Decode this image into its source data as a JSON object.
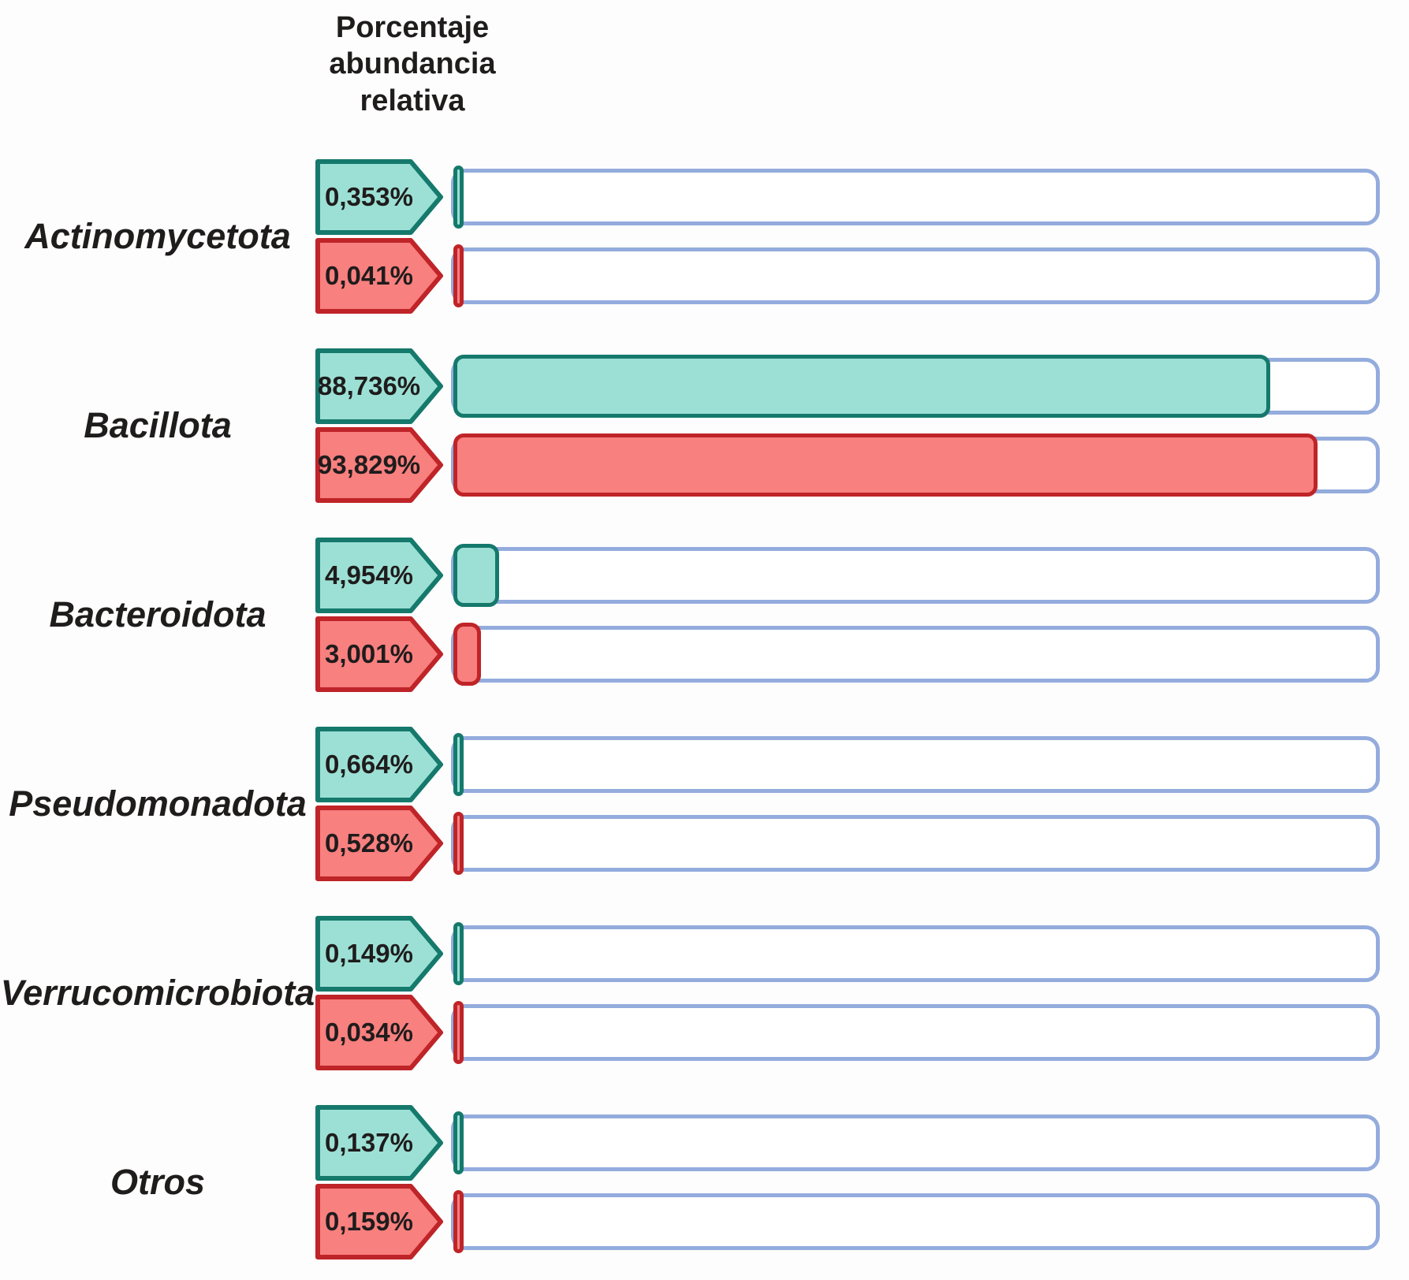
{
  "header": {
    "title": "Porcentaje abundancia relativa"
  },
  "colors": {
    "teal_fill": "#9ce0d5",
    "teal_border": "#15796c",
    "red_fill": "#f8807f",
    "red_border": "#bf2428",
    "track_border": "#94acdd",
    "track_fill": "#ffffff",
    "label_text": "#1f1c1c",
    "background": "#fdfdfd"
  },
  "groups": [
    {
      "label": "Actinomycetota",
      "rows": [
        {
          "series": "teal",
          "value_label": "0,353%",
          "value_num": 0.353
        },
        {
          "series": "red",
          "value_label": "0,041%",
          "value_num": 0.041
        }
      ]
    },
    {
      "label": "Bacillota",
      "rows": [
        {
          "series": "teal",
          "value_label": "88,736%",
          "value_num": 88.736
        },
        {
          "series": "red",
          "value_label": "93,829%",
          "value_num": 93.829
        }
      ]
    },
    {
      "label": "Bacteroidota",
      "rows": [
        {
          "series": "teal",
          "value_label": "4,954%",
          "value_num": 4.954
        },
        {
          "series": "red",
          "value_label": "3,001%",
          "value_num": 3.001
        }
      ]
    },
    {
      "label": "Pseudomonadota",
      "rows": [
        {
          "series": "teal",
          "value_label": "0,664%",
          "value_num": 0.664
        },
        {
          "series": "red",
          "value_label": "0,528%",
          "value_num": 0.528
        }
      ]
    },
    {
      "label": "Verrucomicrobiota",
      "rows": [
        {
          "series": "teal",
          "value_label": "0,149%",
          "value_num": 0.149
        },
        {
          "series": "red",
          "value_label": "0,034%",
          "value_num": 0.034
        }
      ]
    },
    {
      "label": "Otros",
      "rows": [
        {
          "series": "teal",
          "value_label": "0,137%",
          "value_num": 0.137
        },
        {
          "series": "red",
          "value_label": "0,159%",
          "value_num": 0.159
        }
      ]
    }
  ],
  "chart_data": {
    "type": "bar",
    "orientation": "horizontal",
    "title": "Porcentaje abundancia relativa",
    "categories": [
      "Actinomycetota",
      "Bacillota",
      "Bacteroidota",
      "Pseudomonadota",
      "Verrucomicrobiota",
      "Otros"
    ],
    "series": [
      {
        "name": "teal",
        "color": "#9ce0d5",
        "values": [
          0.353,
          88.736,
          4.954,
          0.664,
          0.149,
          0.137
        ],
        "value_labels": [
          "0,353%",
          "88,736%",
          "4,954%",
          "0,664%",
          "0,149%",
          "0,137%"
        ]
      },
      {
        "name": "red",
        "color": "#f8807f",
        "values": [
          0.041,
          93.829,
          3.001,
          0.528,
          0.034,
          0.159
        ],
        "value_labels": [
          "0,041%",
          "93,829%",
          "3,001%",
          "0,528%",
          "0,034%",
          "0,159%"
        ]
      }
    ],
    "xlim": [
      0,
      100
    ],
    "grid": false,
    "legend": false
  }
}
